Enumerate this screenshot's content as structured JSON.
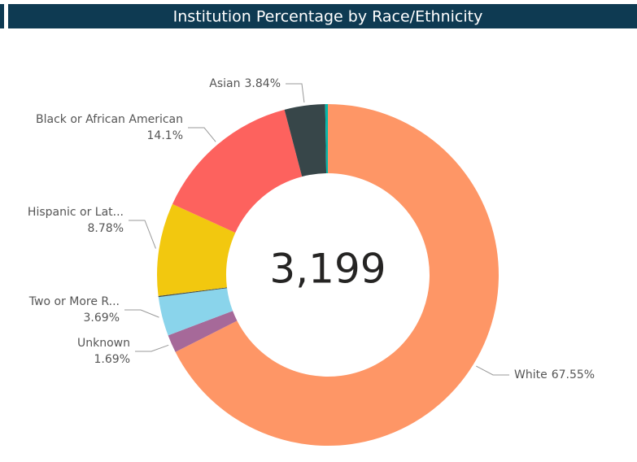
{
  "chart_data": {
    "type": "donut",
    "title": "Institution Percentage by Race/Ethnicity",
    "center_label": "3,199",
    "categories": [
      "White",
      "Unknown",
      "Two or More R...",
      null,
      "Hispanic or Lat...",
      "Black or African American",
      "Asian",
      null
    ],
    "values": [
      67.55,
      1.69,
      3.69,
      0.1,
      8.78,
      14.1,
      3.84,
      0.25
    ],
    "value_labels": [
      "67.55%",
      "1.69%",
      "3.69%",
      null,
      "8.78%",
      "14.1%",
      "3.84%",
      null
    ],
    "colors": [
      "#fe9666",
      "#a66999",
      "#8ad4eb",
      "#3e4a4c",
      "#f2c80f",
      "#fd625e",
      "#374649",
      "#01b8aa"
    ]
  }
}
